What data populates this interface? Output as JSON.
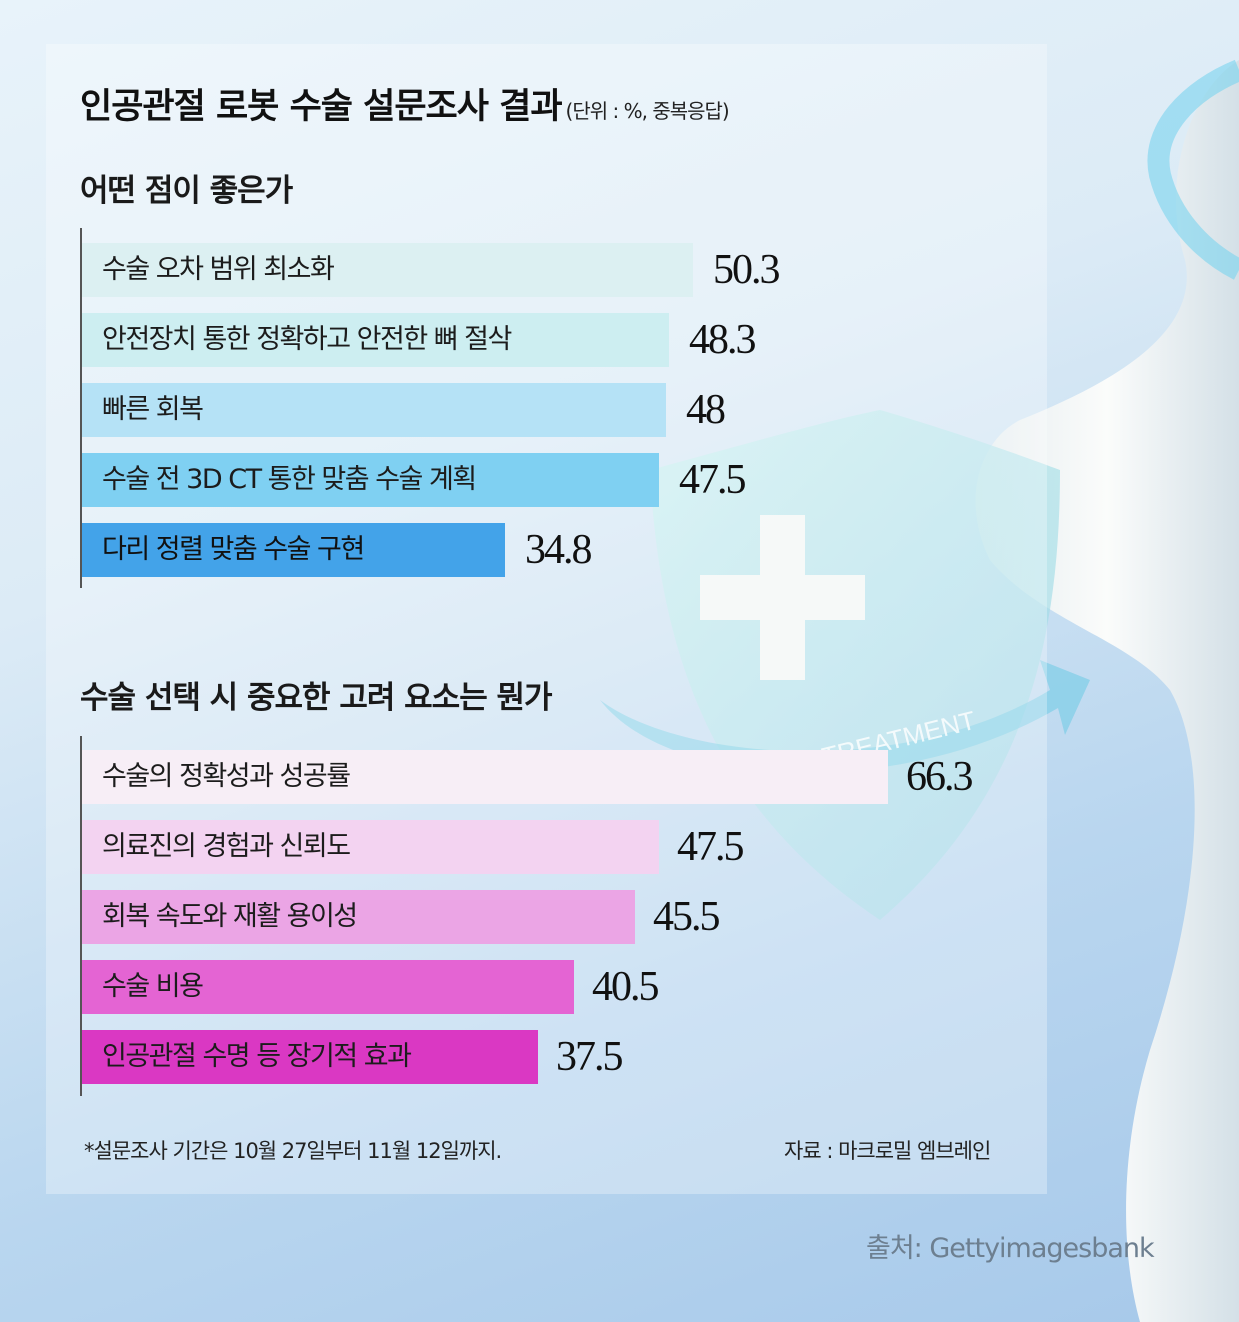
{
  "title": "인공관절 로봇 수술 설문조사 결과",
  "unit_note": "(단위 : %, 중복응답)",
  "illustration": {
    "shield_text": "TREATMENT"
  },
  "chart_data": [
    {
      "type": "bar",
      "orientation": "horizontal",
      "title": "어떤 점이 좋은가",
      "categories": [
        "수술 오차 범위 최소화",
        "안전장치 통한 정확하고 안전한 뼈 절삭",
        "빠른 회복",
        "수술 전 3D CT 통한 맞춤 수술 계획",
        "다리 정렬 맞춤 수술 구현"
      ],
      "values": [
        50.3,
        48.3,
        48,
        47.5,
        34.8
      ],
      "value_labels": [
        "50.3",
        "48.3",
        "48",
        "47.5",
        "34.8"
      ],
      "colors": [
        "#dcf0f2",
        "#cdeef1",
        "#b5e2f6",
        "#7fd0f2",
        "#43a3e9"
      ],
      "xlim": [
        0,
        66.3
      ]
    },
    {
      "type": "bar",
      "orientation": "horizontal",
      "title": "수술 선택 시 중요한 고려 요소는 뭔가",
      "categories": [
        "수술의 정확성과 성공률",
        "의료진의 경험과 신뢰도",
        "회복 속도와 재활 용이성",
        "수술 비용",
        "인공관절 수명 등 장기적 효과"
      ],
      "values": [
        66.3,
        47.5,
        45.5,
        40.5,
        37.5
      ],
      "value_labels": [
        "66.3",
        "47.5",
        "45.5",
        "40.5",
        "37.5"
      ],
      "colors": [
        "#f7eef6",
        "#f3d3f1",
        "#eba5e5",
        "#e464d3",
        "#da38c3"
      ],
      "xlim": [
        0,
        66.3
      ]
    }
  ],
  "footnote": "*설문조사 기간은 10월 27일부터 11월 12일까지.",
  "source": "자료 : 마크로밀 엠브레인",
  "credit": "출처: Gettyimagesbank"
}
